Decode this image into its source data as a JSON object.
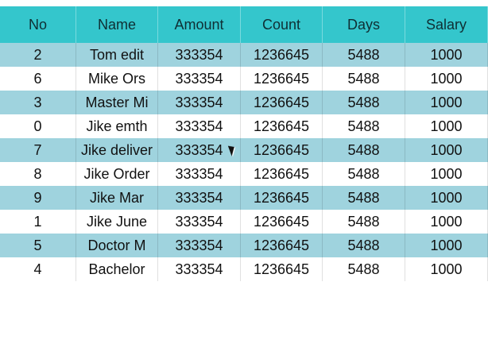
{
  "table": {
    "headers": [
      "No",
      "Name",
      "Amount",
      "Count",
      "Days",
      "Salary"
    ],
    "rows": [
      [
        "2",
        "Tom edit",
        "333354",
        "1236645",
        "5488",
        "1000"
      ],
      [
        "6",
        "Mike Ors",
        "333354",
        "1236645",
        "5488",
        "1000"
      ],
      [
        "3",
        "Master Mi",
        "333354",
        "1236645",
        "5488",
        "1000"
      ],
      [
        "0",
        "Jike emth",
        "333354",
        "1236645",
        "5488",
        "1000"
      ],
      [
        "7",
        "Jike deliver",
        "333354",
        "1236645",
        "5488",
        "1000"
      ],
      [
        "8",
        "Jike Order",
        "333354",
        "1236645",
        "5488",
        "1000"
      ],
      [
        "9",
        "Jike Mar",
        "333354",
        "1236645",
        "5488",
        "1000"
      ],
      [
        "1",
        "Jike June",
        "333354",
        "1236645",
        "5488",
        "1000"
      ],
      [
        "5",
        "Doctor M",
        "333354",
        "1236645",
        "5488",
        "1000"
      ],
      [
        "4",
        "Bachelor",
        "333354",
        "1236645",
        "5488",
        "1000"
      ]
    ]
  },
  "colors": {
    "header_bg": "#34c6cc",
    "alt_row_bg": "#9fd3de",
    "plain_row_bg": "#ffffff"
  },
  "icons": {
    "cursor": "mouse-pointer-icon"
  }
}
